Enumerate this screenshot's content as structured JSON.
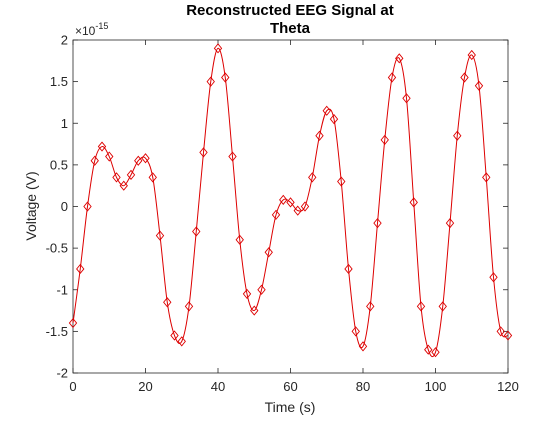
{
  "figure": {
    "background": "#ffffff"
  },
  "chart_data": {
    "type": "line",
    "title_lines": [
      "Reconstructed EEG Signal at",
      "Theta"
    ],
    "xlabel": "Time (s)",
    "ylabel": "Voltage (V)",
    "y_exponent_label": "×10",
    "y_exponent_power": "-15",
    "xlim": [
      0,
      120
    ],
    "ylim": [
      -2,
      2
    ],
    "xticks": [
      0,
      20,
      40,
      60,
      80,
      100,
      120
    ],
    "yticks": [
      -2,
      -1.5,
      -1,
      -0.5,
      0,
      0.5,
      1,
      1.5,
      2
    ],
    "xtick_labels": [
      "0",
      "20",
      "40",
      "60",
      "80",
      "100",
      "120"
    ],
    "ytick_labels": [
      "-2",
      "-1.5",
      "-1",
      "-0.5",
      "0",
      "0.5",
      "1",
      "1.5",
      "2"
    ],
    "grid": false,
    "marker": "diamond",
    "line_color": "#dd0000",
    "axis_color": "#262626",
    "series": [
      {
        "x": [
          0,
          2,
          4,
          6,
          8,
          10,
          12,
          14,
          16,
          18,
          20,
          22,
          24,
          26,
          28,
          30,
          32,
          34,
          36,
          38,
          40,
          42,
          44,
          46,
          48,
          50,
          52,
          54,
          56,
          58,
          60,
          62,
          64,
          66,
          68,
          70,
          72,
          74,
          76,
          78,
          80,
          82,
          84,
          86,
          88,
          90,
          92,
          94,
          96,
          98,
          100,
          102,
          104,
          106,
          108,
          110,
          112,
          114,
          116,
          118,
          120
        ],
        "values": [
          -1.4,
          -0.75,
          0.0,
          0.55,
          0.72,
          0.6,
          0.35,
          0.25,
          0.38,
          0.55,
          0.58,
          0.35,
          -0.35,
          -1.15,
          -1.55,
          -1.62,
          -1.2,
          -0.3,
          0.65,
          1.5,
          1.9,
          1.55,
          0.6,
          -0.4,
          -1.05,
          -1.25,
          -1.0,
          -0.55,
          -0.1,
          0.08,
          0.05,
          -0.05,
          0.0,
          0.35,
          0.85,
          1.15,
          1.05,
          0.3,
          -0.75,
          -1.5,
          -1.68,
          -1.2,
          -0.2,
          0.8,
          1.55,
          1.78,
          1.3,
          0.05,
          -1.2,
          -1.72,
          -1.75,
          -1.2,
          -0.2,
          0.85,
          1.55,
          1.82,
          1.45,
          0.35,
          -0.85,
          -1.5,
          -1.55
        ]
      }
    ]
  }
}
